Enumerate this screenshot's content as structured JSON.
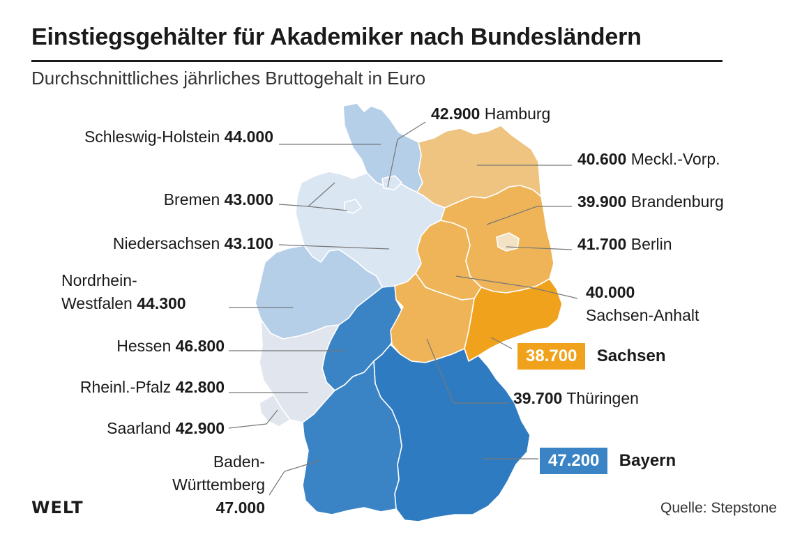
{
  "title": "Einstiegsgehälter für Akademiker nach Bundesländern",
  "subtitle": "Durchschnittliches jährliches Bruttogehalt in Euro",
  "brand": "WELT",
  "source": "Quelle: Stepstone",
  "colors": {
    "very_light_blue": "#dbe6f3",
    "light_blue": "#b6cfe8",
    "mid_blue": "#a9c5e4",
    "blue": "#3a84c6",
    "dark_blue": "#2f7bc2",
    "grey": "#e1e6ee",
    "light_orange": "#eec480",
    "orange": "#eeb457",
    "dark_orange": "#f0a21c",
    "berlin": "#f3e3c4",
    "box_sachsen": "#f0a21c",
    "box_bayern": "#3a84c6"
  },
  "states": [
    {
      "name": "Schleswig-Holstein",
      "value": "44.000"
    },
    {
      "name": "Hamburg",
      "value": "42.900"
    },
    {
      "name": "Meckl.-Vorp.",
      "value": "40.600"
    },
    {
      "name": "Bremen",
      "value": "43.000"
    },
    {
      "name": "Brandenburg",
      "value": "39.900"
    },
    {
      "name": "Niedersachsen",
      "value": "43.100"
    },
    {
      "name": "Berlin",
      "value": "41.700"
    },
    {
      "name_line1": "Nordrhein-",
      "name_line2": "Westfalen",
      "value": "44.300"
    },
    {
      "value": "40.000",
      "name": "Sachsen-Anhalt"
    },
    {
      "name": "Hessen",
      "value": "46.800"
    },
    {
      "name": "Sachsen",
      "value": "38.700"
    },
    {
      "name": "Rheinl.-Pfalz",
      "value": "42.800"
    },
    {
      "name": "Thüringen",
      "value": "39.700"
    },
    {
      "name": "Saarland",
      "value": "42.900"
    },
    {
      "name": "Bayern",
      "value": "47.200"
    },
    {
      "name_line1": "Baden-",
      "name_line2": "Württemberg",
      "value": "47.000"
    }
  ]
}
